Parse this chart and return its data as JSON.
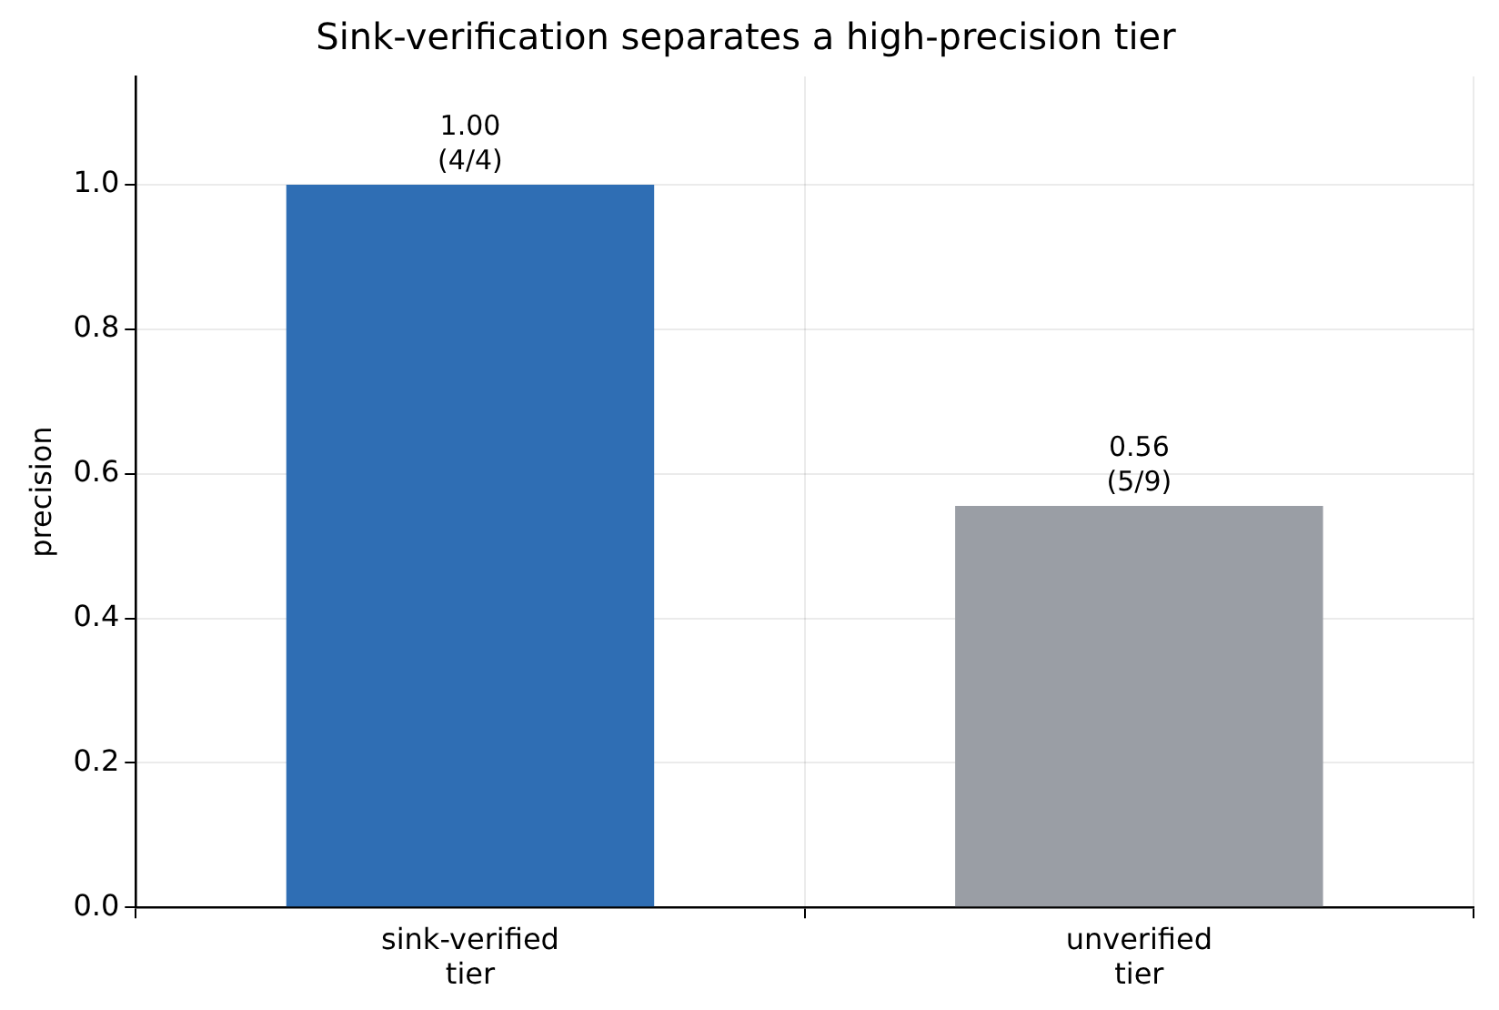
{
  "chart_data": {
    "type": "bar",
    "title": "Sink-verification separates a high-precision tier",
    "ylabel": "precision",
    "categories": [
      "sink-verified\ntier",
      "unverified\ntier"
    ],
    "values": [
      1.0,
      0.5556
    ],
    "colors": [
      "#2f6eb4",
      "#9a9ea5"
    ],
    "value_labels": [
      "1.00\n(4/4)",
      "0.56\n(5/9)"
    ],
    "ylim": [
      0,
      1.15
    ],
    "yticks": [
      {
        "value": 0,
        "label": "0.0"
      },
      {
        "value": 0.2,
        "label": "0.2"
      },
      {
        "value": 0.4,
        "label": "0.4"
      },
      {
        "value": 0.6,
        "label": "0.6"
      },
      {
        "value": 0.8,
        "label": "0.8"
      },
      {
        "value": 1,
        "label": "1.0"
      }
    ],
    "grid": true,
    "legend": false
  }
}
